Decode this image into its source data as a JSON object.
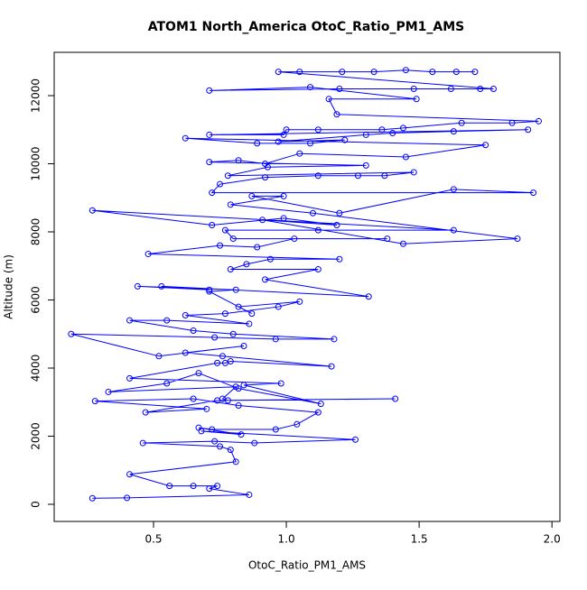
{
  "chart_data": {
    "type": "line",
    "title": "ATOM1 North_America OtoC_Ratio_PM1_AMS",
    "x_label": "OtoC_Ratio_PM1_AMS",
    "y_label": "Altitude (m)",
    "color": "#0000ff",
    "markers": true,
    "xlim": [
      0.126,
      2.03
    ],
    "ylim": [
      -503,
      13272
    ],
    "xticks": [
      0.5,
      {
        "value": 1,
        "label": "1.0"
      },
      1.5,
      {
        "value": 2,
        "label": "2.0"
      }
    ],
    "yticks": [
      0,
      2000,
      4000,
      6000,
      8000,
      10000,
      12000
    ],
    "x": [
      0.27,
      0.4,
      0.86,
      0.71,
      0.74,
      0.65,
      0.56,
      0.41,
      0.81,
      0.79,
      0.75,
      0.46,
      0.73,
      0.88,
      1.26,
      0.68,
      0.83,
      0.67,
      0.72,
      0.96,
      1.04,
      1.12,
      0.82,
      0.65,
      0.28,
      0.7,
      0.47,
      0.74,
      1.41,
      0.78,
      0.76,
      0.81,
      0.33,
      0.55,
      0.67,
      0.82,
      1.13,
      0.84,
      0.98,
      0.41,
      0.74,
      0.77,
      0.79,
      1.17,
      0.76,
      0.62,
      0.84,
      0.52,
      0.19,
      0.73,
      0.96,
      1.18,
      0.8,
      0.65,
      0.41,
      0.55,
      0.86,
      0.62,
      0.77,
      0.97,
      1.05,
      0.82,
      0.87,
      0.71,
      0.81,
      0.44,
      0.71,
      0.53,
      1.31,
      0.92,
      1.12,
      0.79,
      0.85,
      0.94,
      1.2,
      0.48,
      0.75,
      0.89,
      1.03,
      1.38,
      0.8,
      0.77,
      1.12,
      1.63,
      0.27,
      0.72,
      0.99,
      1.19,
      0.91,
      1.44,
      1.87,
      1.1,
      0.79,
      0.99,
      0.87,
      1.2,
      1.63,
      1.93,
      0.72,
      0.75,
      0.92,
      1.12,
      1.27,
      1.37,
      1.48,
      0.78,
      0.93,
      1.3,
      0.71,
      0.82,
      0.92,
      1.05,
      1.45,
      1.75,
      0.62,
      0.89,
      1.09,
      1.22,
      0.97,
      1.3,
      1.4,
      1.63,
      1.91,
      0.71,
      0.99,
      1.0,
      1.12,
      1.36,
      1.44,
      1.66,
      1.85,
      1.95,
      1.19,
      1.16,
      1.49,
      1.09,
      0.71,
      1.2,
      1.48,
      1.62,
      1.73,
      1.78,
      0.97,
      1.05,
      1.21,
      1.33,
      1.45,
      1.55,
      1.64,
      1.71
    ],
    "values": [
      180,
      190,
      280,
      460,
      540,
      540,
      540,
      880,
      1250,
      1600,
      1700,
      1800,
      1850,
      1800,
      1900,
      2150,
      2050,
      2250,
      2200,
      2200,
      2350,
      2700,
      2900,
      3100,
      3030,
      2800,
      2700,
      3050,
      3100,
      3050,
      3100,
      3450,
      3300,
      3550,
      3850,
      3400,
      2950,
      3500,
      3550,
      3700,
      4150,
      4150,
      4200,
      4050,
      4350,
      4450,
      4650,
      4350,
      5000,
      4900,
      4850,
      4850,
      5000,
      5100,
      5400,
      5400,
      5300,
      5550,
      5600,
      5800,
      5950,
      5800,
      5600,
      6250,
      6300,
      6400,
      6300,
      6400,
      6100,
      6600,
      6900,
      6900,
      7050,
      7200,
      7200,
      7350,
      7600,
      7550,
      7800,
      7800,
      7800,
      8050,
      8050,
      8050,
      8630,
      8200,
      8400,
      8200,
      8350,
      7650,
      7800,
      8550,
      8800,
      9050,
      9050,
      8550,
      9250,
      9150,
      9150,
      9400,
      9600,
      9650,
      9650,
      9650,
      9750,
      9650,
      9900,
      9950,
      10050,
      10100,
      10000,
      10300,
      10200,
      10550,
      10750,
      10600,
      10600,
      10700,
      10650,
      10850,
      10900,
      10950,
      11000,
      10850,
      10850,
      11000,
      11000,
      11000,
      11050,
      11200,
      11200,
      11250,
      11450,
      11900,
      11900,
      12250,
      12150,
      12200,
      12200,
      12200,
      12200,
      12200,
      12700,
      12700,
      12700,
      12700,
      12750,
      12700,
      12700,
      12700
    ]
  }
}
